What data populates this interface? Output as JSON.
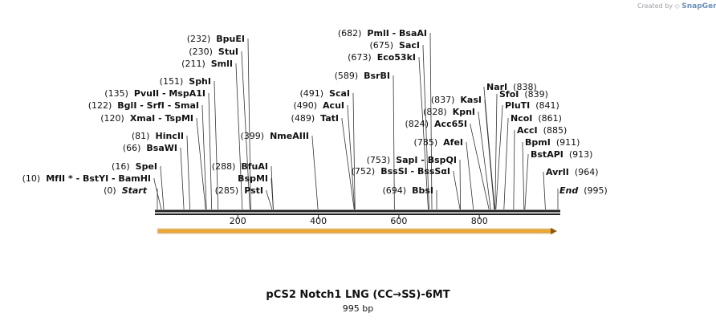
{
  "watermark": {
    "prefix": "Created by",
    "brand": "SnapGene"
  },
  "map": {
    "title": "pCS2 Notch1 LNG (CC→SS)-6MT",
    "length_label": "995 bp",
    "length": 995,
    "ticks": [
      "200",
      "400",
      "600",
      "800"
    ],
    "tick_values": [
      200,
      400,
      600,
      800
    ],
    "feature": {
      "name": "orf-arrow",
      "start": 1,
      "end": 995,
      "color": "#f2a62b",
      "outline": "#8a5a10"
    },
    "colors": {
      "line": "#222222",
      "text": "#111111"
    }
  },
  "sites": [
    {
      "pos": "(0)",
      "name": "Start",
      "bp": 0,
      "italic": true
    },
    {
      "pos": "(10)",
      "name": "MfII * - BstYI - BamHI",
      "bp": 10
    },
    {
      "pos": "(16)",
      "name": "SpeI",
      "bp": 16
    },
    {
      "pos": "(66)",
      "name": "BsaWI",
      "bp": 66
    },
    {
      "pos": "(81)",
      "name": "HincII",
      "bp": 81
    },
    {
      "pos": "(120)",
      "name": "XmaI - TspMI",
      "bp": 120
    },
    {
      "pos": "(122)",
      "name": "BglI - SrfI - SmaI",
      "bp": 122
    },
    {
      "pos": "(135)",
      "name": "PvuII - MspA1I",
      "bp": 135
    },
    {
      "pos": "(151)",
      "name": "SphI",
      "bp": 151
    },
    {
      "pos": "(211)",
      "name": "SmlI",
      "bp": 211
    },
    {
      "pos": "(230)",
      "name": "StuI",
      "bp": 230
    },
    {
      "pos": "(232)",
      "name": "BpuEI",
      "bp": 232
    },
    {
      "pos": "(285)",
      "name": "PstI",
      "bp": 285
    },
    {
      "pos": "(288)",
      "name": "BfuAI",
      "bp": 288
    },
    {
      "pos": "",
      "name": "BspMI",
      "bp": 288
    },
    {
      "pos": "(399)",
      "name": "NmeAIII",
      "bp": 399
    },
    {
      "pos": "(489)",
      "name": "TatI",
      "bp": 489
    },
    {
      "pos": "(490)",
      "name": "AcuI",
      "bp": 490
    },
    {
      "pos": "(491)",
      "name": "ScaI",
      "bp": 491
    },
    {
      "pos": "(589)",
      "name": "BsrBI",
      "bp": 589
    },
    {
      "pos": "(673)",
      "name": "Eco53kI",
      "bp": 673
    },
    {
      "pos": "(675)",
      "name": "SacI",
      "bp": 675
    },
    {
      "pos": "(682)",
      "name": "PmlI - BsaAI",
      "bp": 682
    },
    {
      "pos": "(694)",
      "name": "BbsI",
      "bp": 694
    },
    {
      "pos": "(752)",
      "name": "BssSI - BssSαI",
      "bp": 752
    },
    {
      "pos": "(753)",
      "name": "SapI - BspQI",
      "bp": 753
    },
    {
      "pos": "(785)",
      "name": "AfeI",
      "bp": 785
    },
    {
      "pos": "(824)",
      "name": "Acc65I",
      "bp": 824
    },
    {
      "pos": "(828)",
      "name": "KpnI",
      "bp": 828
    },
    {
      "pos": "(837)",
      "name": "KasI",
      "bp": 837
    },
    {
      "pos": "(838)",
      "name": "NarI",
      "bp": 838
    },
    {
      "pos": "(839)",
      "name": "SfoI",
      "bp": 839
    },
    {
      "pos": "(841)",
      "name": "PluTI",
      "bp": 841
    },
    {
      "pos": "(861)",
      "name": "NcoI",
      "bp": 861
    },
    {
      "pos": "(885)",
      "name": "AccI",
      "bp": 885
    },
    {
      "pos": "(911)",
      "name": "BpmI",
      "bp": 911
    },
    {
      "pos": "(913)",
      "name": "BstAPI",
      "bp": 913
    },
    {
      "pos": "(964)",
      "name": "AvrII",
      "bp": 964
    },
    {
      "pos": "(995)",
      "name": "End",
      "bp": 995,
      "italic": true
    }
  ]
}
